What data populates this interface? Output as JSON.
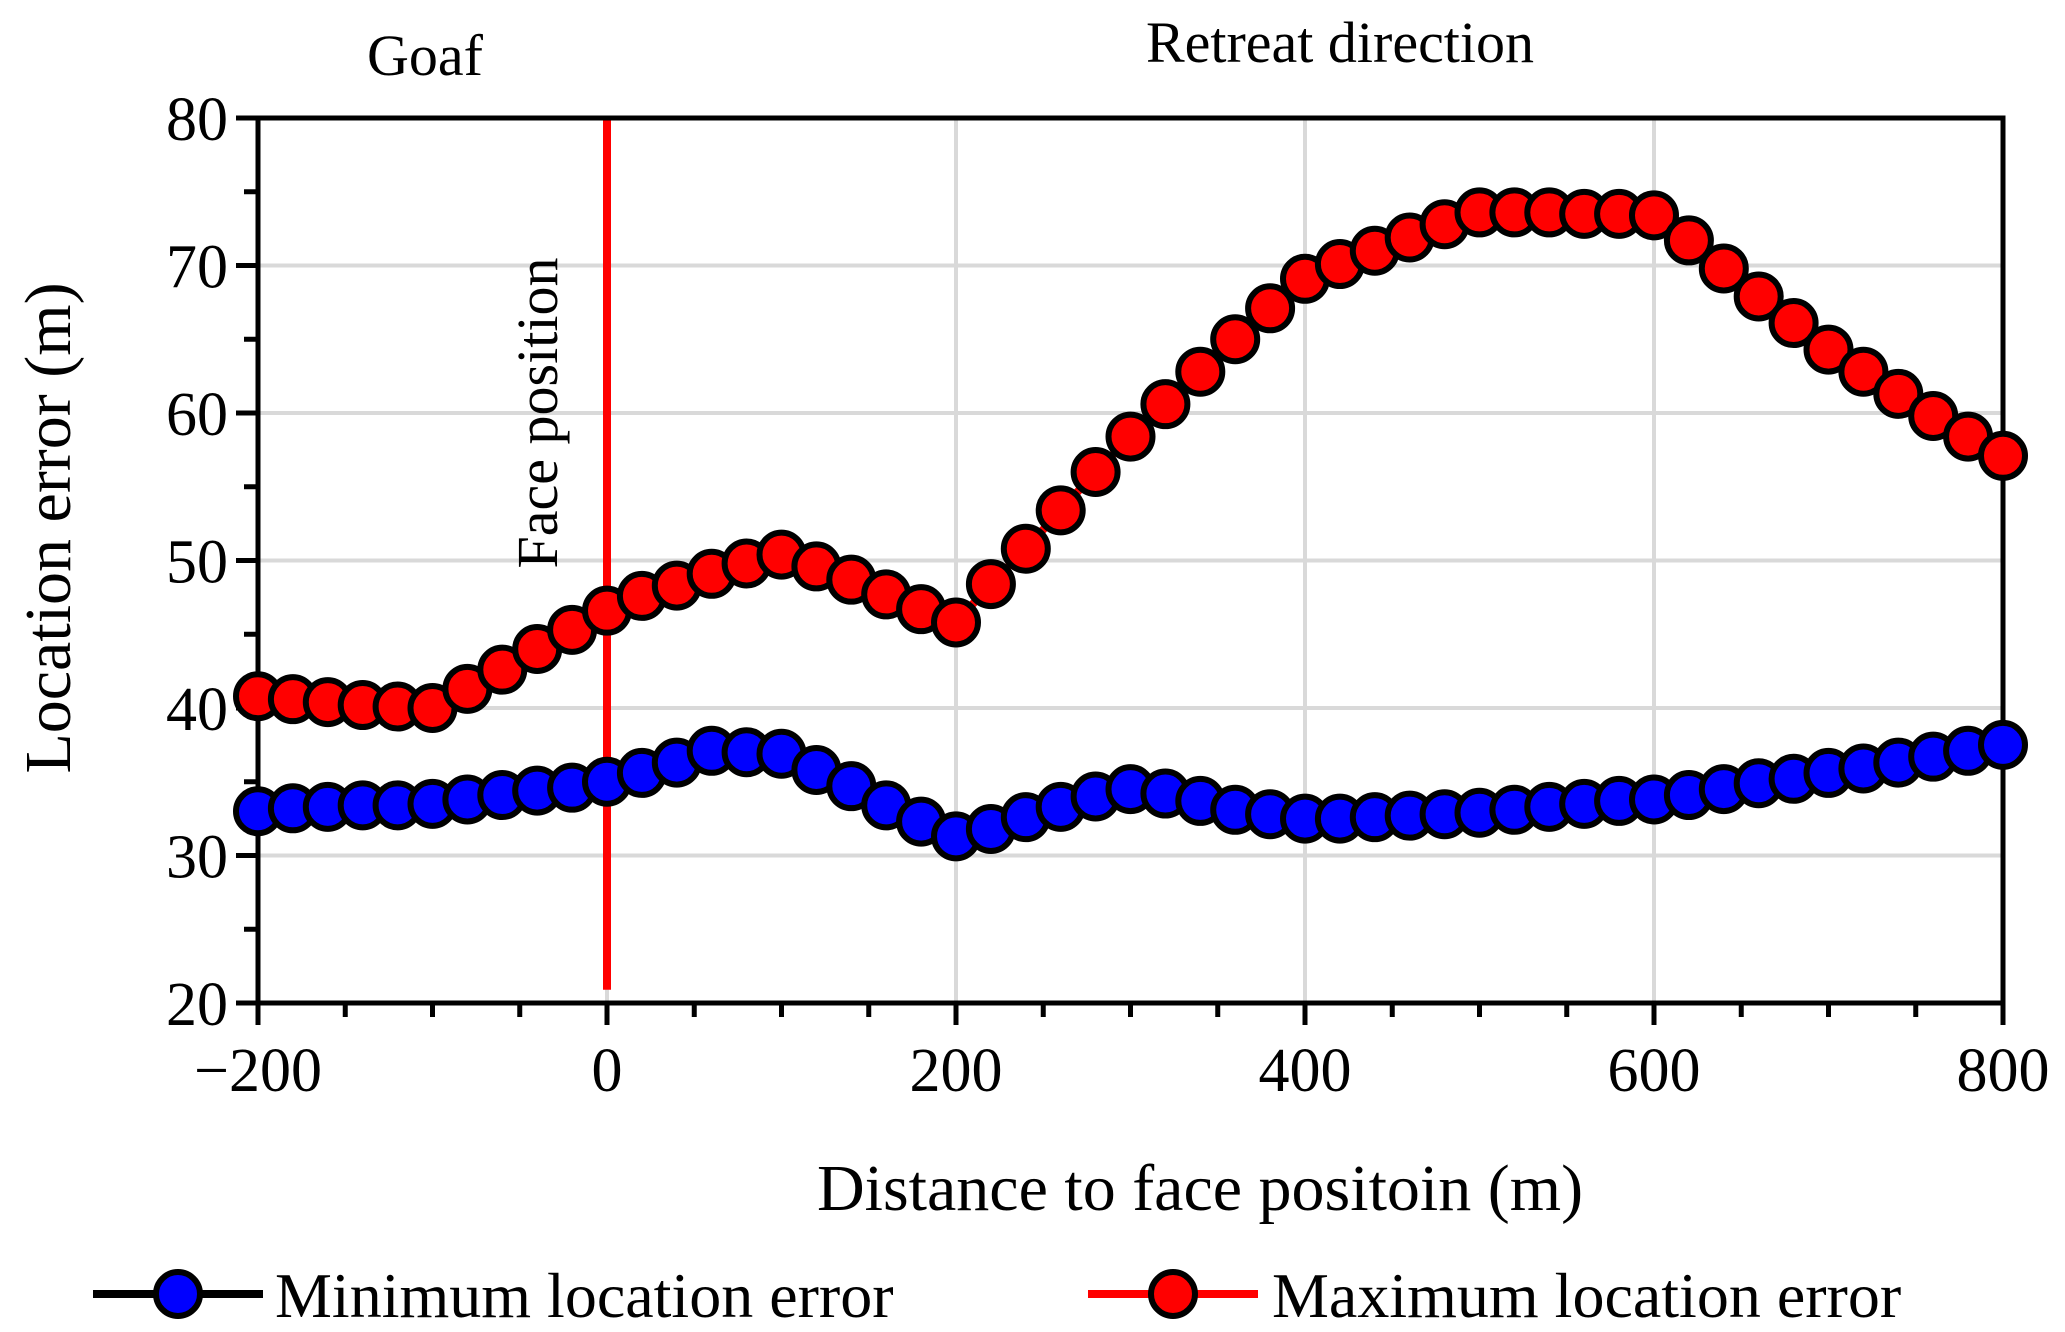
{
  "chart_data": {
    "type": "line",
    "title": "",
    "xlabel": "Distance to face positoin (m)",
    "ylabel": "Location error (m)",
    "xlim": [
      -200,
      800
    ],
    "ylim": [
      20,
      80
    ],
    "xticks": [
      -200,
      0,
      200,
      400,
      600,
      800
    ],
    "xtick_labels": [
      "−200",
      "0",
      "200",
      "400",
      "600",
      "800"
    ],
    "yticks": [
      20,
      30,
      40,
      50,
      60,
      70,
      80
    ],
    "grid": true,
    "legend_position": "bottom",
    "x": [
      -200,
      -180,
      -160,
      -140,
      -120,
      -100,
      -80,
      -60,
      -40,
      -20,
      0,
      20,
      40,
      60,
      80,
      100,
      120,
      140,
      160,
      180,
      200,
      220,
      240,
      260,
      280,
      300,
      320,
      340,
      360,
      380,
      400,
      420,
      440,
      460,
      480,
      500,
      520,
      540,
      560,
      580,
      600,
      620,
      640,
      660,
      680,
      700,
      720,
      740,
      760,
      780,
      800
    ],
    "series": [
      {
        "name": "Minimum location error",
        "line_color": "#000000",
        "marker_color": "#0000ff",
        "values": [
          33.0,
          33.2,
          33.3,
          33.4,
          33.4,
          33.5,
          33.8,
          34.1,
          34.4,
          34.6,
          35.0,
          35.6,
          36.3,
          37.1,
          37.0,
          36.9,
          35.8,
          34.7,
          33.4,
          32.3,
          31.3,
          31.8,
          32.6,
          33.3,
          34.0,
          34.5,
          34.2,
          33.7,
          33.1,
          32.8,
          32.5,
          32.5,
          32.6,
          32.7,
          32.8,
          32.9,
          33.1,
          33.3,
          33.5,
          33.7,
          33.8,
          34.1,
          34.5,
          34.9,
          35.2,
          35.6,
          35.9,
          36.3,
          36.7,
          37.1,
          37.5
        ]
      },
      {
        "name": "Maximum location error",
        "line_color": "#ff0000",
        "marker_color": "#ff0000",
        "values": [
          40.8,
          40.6,
          40.4,
          40.2,
          40.1,
          40.0,
          41.3,
          42.6,
          44.0,
          45.3,
          46.6,
          47.6,
          48.3,
          49.1,
          49.8,
          50.4,
          49.6,
          48.7,
          47.7,
          46.7,
          45.8,
          48.4,
          50.8,
          53.4,
          56.0,
          58.4,
          60.6,
          62.8,
          65.0,
          67.1,
          69.1,
          70.1,
          71.0,
          71.9,
          72.8,
          73.6,
          73.6,
          73.6,
          73.5,
          73.5,
          73.4,
          71.7,
          69.8,
          67.9,
          66.1,
          64.3,
          62.8,
          61.3,
          59.8,
          58.4,
          57.1
        ]
      }
    ],
    "annotations": {
      "vertical_line_x": 0,
      "vertical_line_color": "#ff0000",
      "face_label": "Face position",
      "goaf_label": "Goaf",
      "retreat_label": "Retreat direction"
    }
  }
}
